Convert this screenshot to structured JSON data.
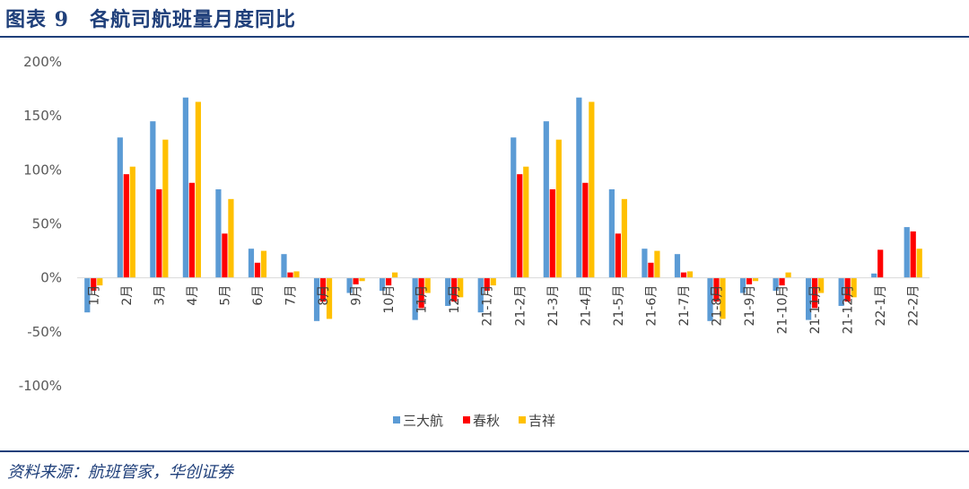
{
  "title": "图表 9　各航司航班量月度同比",
  "source": "资料来源：航班管家，华创证券",
  "chart_data": {
    "type": "bar",
    "categories": [
      "1月",
      "2月",
      "3月",
      "4月",
      "5月",
      "6月",
      "7月",
      "8月",
      "9月",
      "10月",
      "11月",
      "12月",
      "21-1月",
      "21-2月",
      "21-3月",
      "21-4月",
      "21-5月",
      "21-6月",
      "21-7月",
      "21-8月",
      "21-9月",
      "21-10月",
      "21-11月",
      "21-12月",
      "22-1月",
      "22-2月"
    ],
    "series": [
      {
        "name": "三大航",
        "color": "#5b9bd5",
        "values": [
          -32,
          130,
          145,
          167,
          82,
          27,
          22,
          -40,
          -14,
          -12,
          -39,
          -26,
          -32,
          130,
          145,
          167,
          82,
          27,
          22,
          -40,
          -14,
          -12,
          -39,
          -26,
          4,
          47
        ]
      },
      {
        "name": "春秋",
        "color": "#ff0000",
        "values": [
          -12,
          96,
          82,
          88,
          41,
          14,
          5,
          -22,
          -6,
          -7,
          -28,
          -22,
          -12,
          96,
          82,
          88,
          41,
          14,
          5,
          -22,
          -6,
          -7,
          -28,
          -22,
          26,
          43
        ]
      },
      {
        "name": "吉祥",
        "color": "#ffc000",
        "values": [
          -7,
          103,
          128,
          163,
          73,
          25,
          6,
          -38,
          -3,
          5,
          -14,
          -18,
          -7,
          103,
          128,
          163,
          73,
          25,
          6,
          -38,
          -3,
          5,
          -14,
          -18,
          0,
          27
        ]
      }
    ],
    "yticks": [
      "200%",
      "150%",
      "100%",
      "50%",
      "0%",
      "-50%",
      "-100%"
    ],
    "ylim": [
      -100,
      200
    ],
    "legend_position": "bottom"
  }
}
